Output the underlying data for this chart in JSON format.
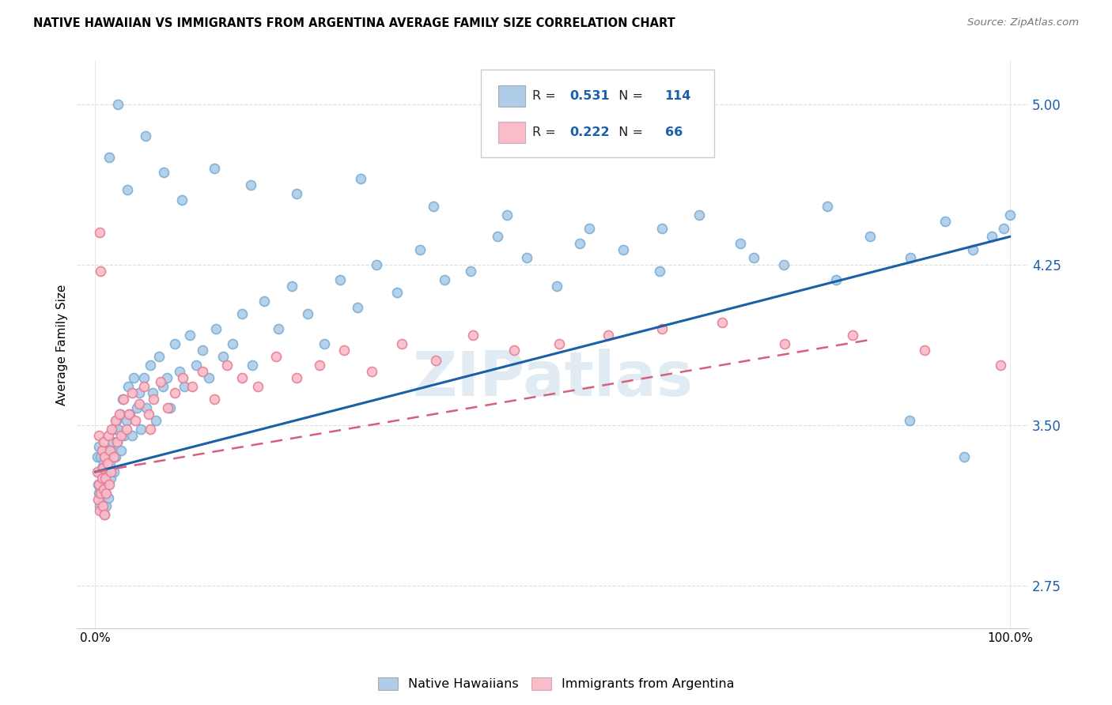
{
  "title": "NATIVE HAWAIIAN VS IMMIGRANTS FROM ARGENTINA AVERAGE FAMILY SIZE CORRELATION CHART",
  "source": "Source: ZipAtlas.com",
  "ylabel": "Average Family Size",
  "xlim": [
    -0.02,
    1.02
  ],
  "ylim_min": 2.55,
  "ylim_max": 5.2,
  "yticks": [
    2.75,
    3.5,
    4.25,
    5.0
  ],
  "xticks": [
    0.0,
    1.0
  ],
  "xticklabels": [
    "0.0%",
    "100.0%"
  ],
  "blue_fill": "#aecde8",
  "blue_edge": "#7bafd4",
  "blue_line_color": "#1a5fa8",
  "pink_fill": "#f9bcc8",
  "pink_edge": "#e87c96",
  "pink_line_color": "#d4607a",
  "watermark": "ZIPatlas",
  "legend_R1": "0.531",
  "legend_N1": "114",
  "legend_R2": "0.222",
  "legend_N2": "66",
  "blue_x": [
    0.002,
    0.003,
    0.004,
    0.004,
    0.005,
    0.005,
    0.006,
    0.006,
    0.007,
    0.007,
    0.008,
    0.008,
    0.009,
    0.009,
    0.01,
    0.01,
    0.011,
    0.011,
    0.012,
    0.012,
    0.013,
    0.013,
    0.014,
    0.015,
    0.016,
    0.017,
    0.018,
    0.019,
    0.02,
    0.021,
    0.022,
    0.023,
    0.024,
    0.025,
    0.027,
    0.028,
    0.03,
    0.032,
    0.034,
    0.036,
    0.038,
    0.04,
    0.042,
    0.045,
    0.048,
    0.05,
    0.053,
    0.056,
    0.06,
    0.063,
    0.066,
    0.07,
    0.074,
    0.078,
    0.082,
    0.087,
    0.092,
    0.097,
    0.103,
    0.11,
    0.117,
    0.124,
    0.132,
    0.14,
    0.15,
    0.16,
    0.172,
    0.185,
    0.2,
    0.215,
    0.232,
    0.25,
    0.268,
    0.287,
    0.307,
    0.33,
    0.355,
    0.382,
    0.41,
    0.44,
    0.472,
    0.505,
    0.54,
    0.577,
    0.617,
    0.66,
    0.705,
    0.753,
    0.8,
    0.847,
    0.891,
    0.929,
    0.959,
    0.98,
    0.993,
    1.0,
    0.015,
    0.025,
    0.035,
    0.055,
    0.075,
    0.095,
    0.13,
    0.17,
    0.22,
    0.29,
    0.37,
    0.45,
    0.53,
    0.62,
    0.72,
    0.81,
    0.89,
    0.95
  ],
  "blue_y": [
    3.35,
    3.22,
    3.18,
    3.4,
    3.12,
    3.28,
    3.2,
    3.35,
    3.15,
    3.3,
    3.1,
    3.25,
    3.2,
    3.32,
    3.08,
    3.24,
    3.18,
    3.35,
    3.12,
    3.28,
    3.22,
    3.38,
    3.16,
    3.28,
    3.32,
    3.25,
    3.38,
    3.42,
    3.28,
    3.48,
    3.35,
    3.52,
    3.42,
    3.48,
    3.55,
    3.38,
    3.62,
    3.45,
    3.52,
    3.68,
    3.55,
    3.45,
    3.72,
    3.58,
    3.65,
    3.48,
    3.72,
    3.58,
    3.78,
    3.65,
    3.52,
    3.82,
    3.68,
    3.72,
    3.58,
    3.88,
    3.75,
    3.68,
    3.92,
    3.78,
    3.85,
    3.72,
    3.95,
    3.82,
    3.88,
    4.02,
    3.78,
    4.08,
    3.95,
    4.15,
    4.02,
    3.88,
    4.18,
    4.05,
    4.25,
    4.12,
    4.32,
    4.18,
    4.22,
    4.38,
    4.28,
    4.15,
    4.42,
    4.32,
    4.22,
    4.48,
    4.35,
    4.25,
    4.52,
    4.38,
    4.28,
    4.45,
    4.32,
    4.38,
    4.42,
    4.48,
    4.75,
    5.0,
    4.6,
    4.85,
    4.68,
    4.55,
    4.7,
    4.62,
    4.58,
    4.65,
    4.52,
    4.48,
    4.35,
    4.42,
    4.28,
    4.18,
    3.52,
    3.35
  ],
  "pink_x": [
    0.002,
    0.003,
    0.004,
    0.004,
    0.005,
    0.005,
    0.006,
    0.006,
    0.007,
    0.007,
    0.008,
    0.008,
    0.009,
    0.009,
    0.01,
    0.01,
    0.011,
    0.012,
    0.013,
    0.014,
    0.015,
    0.016,
    0.017,
    0.018,
    0.02,
    0.022,
    0.024,
    0.026,
    0.028,
    0.031,
    0.034,
    0.037,
    0.04,
    0.044,
    0.048,
    0.053,
    0.058,
    0.064,
    0.071,
    0.079,
    0.087,
    0.096,
    0.106,
    0.117,
    0.13,
    0.144,
    0.16,
    0.178,
    0.198,
    0.22,
    0.245,
    0.272,
    0.302,
    0.335,
    0.372,
    0.413,
    0.458,
    0.507,
    0.561,
    0.62,
    0.685,
    0.754,
    0.828,
    0.907,
    0.99,
    0.06
  ],
  "pink_y": [
    3.28,
    3.15,
    3.22,
    3.45,
    3.1,
    4.4,
    3.18,
    4.22,
    3.25,
    3.38,
    3.12,
    3.3,
    3.2,
    3.42,
    3.08,
    3.35,
    3.25,
    3.18,
    3.32,
    3.45,
    3.22,
    3.38,
    3.28,
    3.48,
    3.35,
    3.52,
    3.42,
    3.55,
    3.45,
    3.62,
    3.48,
    3.55,
    3.65,
    3.52,
    3.6,
    3.68,
    3.55,
    3.62,
    3.7,
    3.58,
    3.65,
    3.72,
    3.68,
    3.75,
    3.62,
    3.78,
    3.72,
    3.68,
    3.82,
    3.72,
    3.78,
    3.85,
    3.75,
    3.88,
    3.8,
    3.92,
    3.85,
    3.88,
    3.92,
    3.95,
    3.98,
    3.88,
    3.92,
    3.85,
    3.78,
    3.48
  ],
  "blue_line_x": [
    0.0,
    1.0
  ],
  "blue_line_y": [
    3.28,
    4.38
  ],
  "pink_line_x": [
    0.0,
    0.85
  ],
  "pink_line_y": [
    3.28,
    3.9
  ]
}
